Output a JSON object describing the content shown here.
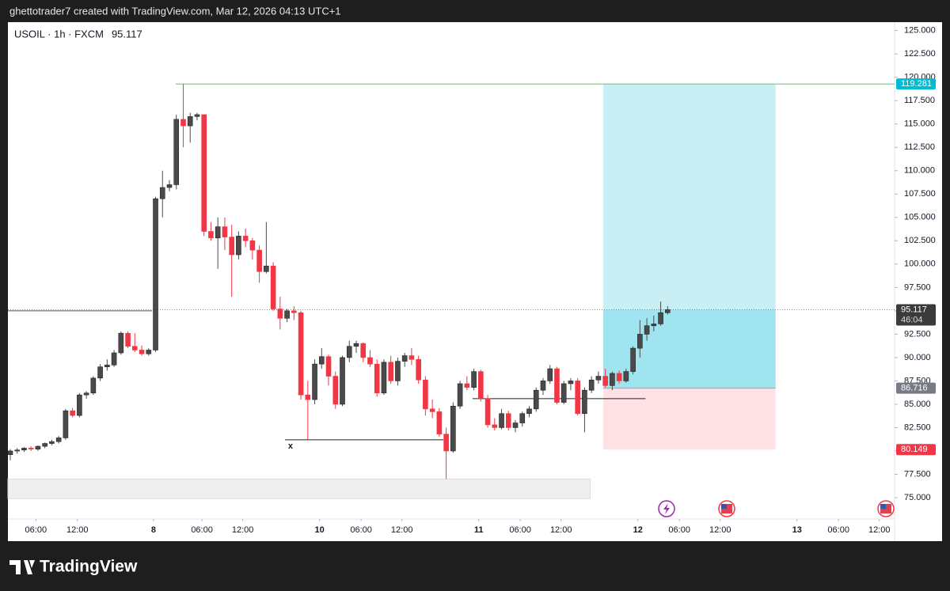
{
  "header": {
    "text": "ghettotrader7 created with TradingView.com, Mar 12, 2026 04:13 UTC+1",
    "brand": "TradingView"
  },
  "chart_data": {
    "type": "candlestick",
    "title": "USOIL · 1h · FXCM",
    "up_color": "#4a4a4a",
    "down_color": "#f23645",
    "xlim": [
      -0.34,
      127.8
    ],
    "ylim": [
      72.8,
      125.9
    ],
    "yticks": [
      {
        "value": 75,
        "label": "75.000"
      },
      {
        "value": 77.5,
        "label": "77.500"
      },
      {
        "value": 80,
        "label": "80.000"
      },
      {
        "value": 82.5,
        "label": "82.500"
      },
      {
        "value": 85,
        "label": "85.000"
      },
      {
        "value": 87.5,
        "label": "87.500"
      },
      {
        "value": 90,
        "label": "90.000"
      },
      {
        "value": 92.5,
        "label": "92.500"
      },
      {
        "value": 95,
        "label": "95.000"
      },
      {
        "value": 97.5,
        "label": "97.500"
      },
      {
        "value": 100,
        "label": "100.000"
      },
      {
        "value": 102.5,
        "label": "102.500"
      },
      {
        "value": 105,
        "label": "105.000"
      },
      {
        "value": 107.5,
        "label": "107.500"
      },
      {
        "value": 110,
        "label": "110.000"
      },
      {
        "value": 112.5,
        "label": "112.500"
      },
      {
        "value": 115,
        "label": "115.000"
      },
      {
        "value": 117.5,
        "label": "117.500"
      },
      {
        "value": 120,
        "label": "120.000"
      },
      {
        "value": 122.5,
        "label": "122.500"
      },
      {
        "value": 125,
        "label": "125.000"
      }
    ],
    "xticks": [
      {
        "value": 3.7,
        "label": "06:00"
      },
      {
        "value": 9.7,
        "label": "12:00"
      },
      {
        "value": 20.7,
        "label": "8"
      },
      {
        "value": 27.7,
        "label": "06:00"
      },
      {
        "value": 33.6,
        "label": "12:00"
      },
      {
        "value": 44.7,
        "label": "10"
      },
      {
        "value": 50.7,
        "label": "06:00"
      },
      {
        "value": 56.6,
        "label": "12:00"
      },
      {
        "value": 67.7,
        "label": "11"
      },
      {
        "value": 73.7,
        "label": "06:00"
      },
      {
        "value": 79.6,
        "label": "12:00"
      },
      {
        "value": 90.7,
        "label": "12"
      },
      {
        "value": 96.7,
        "label": "06:00"
      },
      {
        "value": 102.6,
        "label": "12:00"
      },
      {
        "value": 113.7,
        "label": "13"
      },
      {
        "value": 119.7,
        "label": "06:00"
      },
      {
        "value": 125.6,
        "label": "12:00"
      }
    ],
    "candles": [
      [
        79.6,
        80.2,
        79.0,
        80.0
      ],
      [
        80.0,
        80.3,
        79.7,
        80.1
      ],
      [
        80.1,
        80.4,
        79.9,
        80.3
      ],
      [
        80.3,
        80.5,
        80.0,
        80.2
      ],
      [
        80.2,
        80.6,
        80.0,
        80.5
      ],
      [
        80.5,
        80.9,
        80.3,
        80.8
      ],
      [
        80.8,
        81.2,
        80.6,
        81.0
      ],
      [
        81.0,
        81.6,
        80.8,
        81.4
      ],
      [
        81.4,
        84.5,
        81.2,
        84.3
      ],
      [
        84.3,
        84.6,
        83.6,
        83.8
      ],
      [
        83.8,
        86.2,
        83.6,
        86.0
      ],
      [
        86.0,
        86.4,
        85.6,
        86.2
      ],
      [
        86.2,
        88.0,
        86.0,
        87.8
      ],
      [
        87.8,
        89.3,
        87.5,
        89.0
      ],
      [
        89.0,
        89.8,
        88.6,
        89.2
      ],
      [
        89.2,
        90.8,
        89.0,
        90.5
      ],
      [
        90.5,
        92.8,
        90.3,
        92.6
      ],
      [
        92.6,
        92.8,
        91.0,
        91.2
      ],
      [
        91.2,
        92.6,
        90.6,
        90.8
      ],
      [
        90.8,
        91.3,
        90.2,
        90.4
      ],
      [
        90.4,
        91.0,
        90.2,
        90.8
      ],
      [
        90.8,
        107.2,
        90.6,
        107.0
      ],
      [
        107.0,
        110.0,
        105.0,
        108.2
      ],
      [
        108.2,
        109.0,
        107.8,
        108.5
      ],
      [
        108.5,
        116.0,
        108.0,
        115.5
      ],
      [
        115.5,
        119.281,
        112.5,
        114.8
      ],
      [
        114.8,
        116.2,
        113.0,
        115.8
      ],
      [
        115.8,
        116.2,
        115.4,
        116.0
      ],
      [
        116.0,
        116.0,
        103.0,
        103.5
      ],
      [
        103.5,
        104.5,
        102.5,
        102.8
      ],
      [
        102.8,
        105.0,
        99.5,
        104.0
      ],
      [
        104.0,
        105.0,
        101.5,
        102.9
      ],
      [
        102.9,
        104.2,
        96.5,
        101.0
      ],
      [
        101.0,
        103.5,
        100.5,
        103.0
      ],
      [
        103.0,
        103.8,
        101.8,
        102.5
      ],
      [
        102.5,
        102.8,
        100.5,
        101.5
      ],
      [
        101.5,
        102.0,
        98.0,
        99.2
      ],
      [
        99.2,
        104.5,
        99.0,
        99.8
      ],
      [
        99.8,
        100.2,
        95.0,
        95.2
      ],
      [
        95.2,
        96.5,
        93.0,
        94.2
      ],
      [
        94.2,
        95.2,
        93.8,
        95.0
      ],
      [
        95.0,
        95.5,
        94.0,
        94.8
      ],
      [
        94.8,
        95.0,
        85.5,
        86.0
      ],
      [
        86.0,
        87.5,
        81.2,
        85.5
      ],
      [
        85.5,
        89.8,
        85.0,
        89.3
      ],
      [
        89.3,
        91.0,
        88.8,
        90.1
      ],
      [
        90.1,
        90.3,
        87.0,
        88.0
      ],
      [
        88.0,
        88.5,
        84.5,
        85.0
      ],
      [
        85.0,
        90.2,
        84.8,
        90.0
      ],
      [
        90.0,
        91.8,
        89.5,
        91.2
      ],
      [
        91.2,
        91.8,
        90.5,
        91.5
      ],
      [
        91.5,
        91.6,
        89.5,
        90.0
      ],
      [
        90.0,
        90.8,
        89.0,
        89.3
      ],
      [
        89.3,
        89.8,
        85.8,
        86.2
      ],
      [
        86.2,
        89.8,
        86.0,
        89.5
      ],
      [
        89.5,
        90.2,
        87.2,
        87.5
      ],
      [
        87.5,
        90.0,
        87.0,
        89.6
      ],
      [
        89.6,
        90.5,
        89.0,
        90.2
      ],
      [
        90.2,
        91.0,
        89.2,
        89.8
      ],
      [
        89.8,
        90.2,
        87.2,
        87.6
      ],
      [
        87.6,
        88.0,
        83.8,
        84.5
      ],
      [
        84.5,
        85.5,
        83.5,
        84.2
      ],
      [
        84.2,
        84.6,
        81.5,
        81.8
      ],
      [
        81.8,
        82.5,
        77.0,
        80.0
      ],
      [
        80.0,
        85.2,
        79.8,
        84.8
      ],
      [
        84.8,
        87.5,
        84.5,
        87.2
      ],
      [
        87.2,
        88.0,
        86.5,
        86.8
      ],
      [
        86.8,
        88.8,
        86.5,
        88.5
      ],
      [
        88.5,
        88.7,
        85.3,
        85.6
      ],
      [
        85.6,
        86.0,
        82.5,
        82.8
      ],
      [
        82.8,
        83.5,
        82.2,
        82.5
      ],
      [
        82.5,
        84.5,
        82.3,
        84.0
      ],
      [
        84.0,
        84.3,
        82.2,
        82.5
      ],
      [
        82.5,
        83.3,
        82.0,
        83.0
      ],
      [
        83.0,
        84.2,
        82.6,
        84.0
      ],
      [
        84.0,
        84.8,
        83.6,
        84.5
      ],
      [
        84.5,
        86.8,
        84.2,
        86.5
      ],
      [
        86.5,
        87.8,
        86.0,
        87.5
      ],
      [
        87.5,
        89.2,
        87.2,
        88.8
      ],
      [
        88.8,
        89.0,
        85.0,
        85.2
      ],
      [
        85.2,
        87.5,
        85.0,
        87.2
      ],
      [
        87.2,
        87.8,
        86.5,
        87.5
      ],
      [
        87.5,
        87.8,
        83.8,
        84.0
      ],
      [
        84.0,
        86.8,
        82.0,
        86.5
      ],
      [
        86.5,
        88.0,
        86.2,
        87.6
      ],
      [
        87.6,
        88.5,
        87.2,
        88.0
      ],
      [
        88.0,
        88.8,
        86.8,
        87.0
      ],
      [
        87.0,
        88.5,
        86.5,
        88.3
      ],
      [
        88.3,
        88.6,
        87.2,
        87.5
      ],
      [
        87.5,
        88.8,
        87.3,
        88.5
      ],
      [
        88.5,
        91.2,
        88.2,
        91.0
      ],
      [
        91.0,
        94.0,
        90.0,
        92.5
      ],
      [
        92.5,
        94.2,
        91.8,
        93.4
      ],
      [
        93.4,
        94.5,
        92.8,
        93.6
      ],
      [
        93.6,
        96.0,
        93.4,
        94.8
      ],
      [
        94.8,
        95.5,
        94.6,
        95.117
      ]
    ],
    "countdown": "46:04",
    "position": {
      "from": 85.7,
      "to": 110.6,
      "target": 119.281,
      "entry": 86.716,
      "stop": 80.149
    },
    "target_line": {
      "from": 23.9,
      "price": 119.281
    },
    "zone": {
      "from": -0.34,
      "to": 83.8,
      "low": 74.9,
      "high": 77.0
    },
    "levels": [
      {
        "price": 95.0,
        "from": -0.34,
        "to": 20.5,
        "color": "#555555"
      },
      {
        "price": 85.6,
        "from": 66.8,
        "to": 91.8,
        "color": "#222222"
      },
      {
        "price": 81.2,
        "from": 39.7,
        "to": 62.6,
        "color": "#222222"
      }
    ],
    "marker": {
      "text": "x",
      "x": 40.5,
      "price": 80.5
    }
  }
}
